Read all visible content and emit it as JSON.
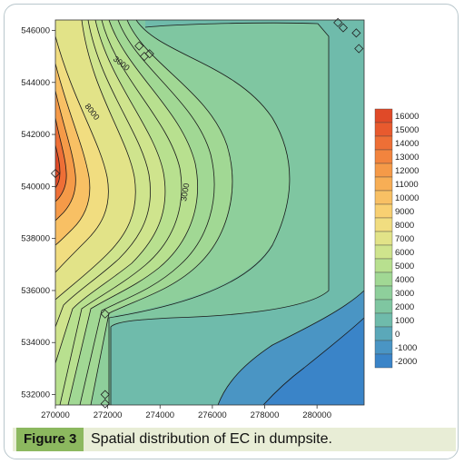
{
  "figure": {
    "label": "Figure 3",
    "caption": "Spatial distribution of EC in dumpsite."
  },
  "chart_data": {
    "type": "heatmap",
    "subtype": "filled contour map",
    "x_ticks": [
      "270000",
      "272000",
      "274000",
      "276000",
      "278000",
      "280000"
    ],
    "y_ticks": [
      "546000",
      "544000",
      "542000",
      "540000",
      "538000",
      "536000",
      "534000",
      "532000"
    ],
    "xlim": [
      270000,
      281800
    ],
    "ylim": [
      531600,
      546400
    ],
    "colorbar_levels": [
      "16000",
      "15000",
      "14000",
      "13000",
      "12000",
      "11000",
      "10000",
      "9000",
      "8000",
      "7000",
      "6000",
      "5000",
      "4000",
      "3000",
      "2000",
      "1000",
      "0",
      "-1000",
      "-2000"
    ],
    "colorbar_colors": [
      "#e04a28",
      "#e85a2e",
      "#ee6f36",
      "#f2843e",
      "#f59a48",
      "#f7ae55",
      "#f8c064",
      "#f8d072",
      "#f1dd80",
      "#e2e388",
      "#cfe48d",
      "#b8e08f",
      "#a1d894",
      "#8ecf9b",
      "#7fc6a1",
      "#6fbbab",
      "#5ba8b9",
      "#4a95c4",
      "#3a84c8"
    ],
    "contour_labels": [
      "3000",
      "8000",
      "3000"
    ],
    "sample_points": [
      {
        "x": 270000,
        "y": 540500
      },
      {
        "x": 273200,
        "y": 545400
      },
      {
        "x": 273400,
        "y": 545000
      },
      {
        "x": 273600,
        "y": 545100
      },
      {
        "x": 271900,
        "y": 535100
      },
      {
        "x": 271900,
        "y": 532000
      },
      {
        "x": 271900,
        "y": 531650
      },
      {
        "x": 280800,
        "y": 546300
      },
      {
        "x": 281000,
        "y": 546100
      },
      {
        "x": 281600,
        "y": 545300
      },
      {
        "x": 281500,
        "y": 545900
      }
    ]
  }
}
